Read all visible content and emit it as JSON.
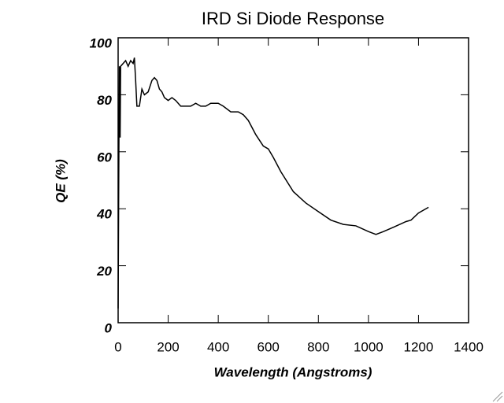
{
  "chart_data": {
    "type": "line",
    "title": "IRD Si Diode Response",
    "x_label": "Wavelength (Angstroms)",
    "y_label": "QE (%)",
    "xlim": [
      0,
      1400
    ],
    "xticks": [
      0,
      200,
      400,
      600,
      800,
      1000,
      1200,
      1400
    ],
    "ylim": [
      0,
      100
    ],
    "yticks": [
      0,
      20,
      40,
      60,
      80,
      100
    ],
    "series": [
      {
        "color": "#000000",
        "x": [
          0,
          3,
          5,
          8,
          10,
          20,
          30,
          40,
          50,
          60,
          65,
          70,
          75,
          85,
          95,
          105,
          120,
          135,
          145,
          155,
          165,
          175,
          185,
          200,
          215,
          230,
          250,
          270,
          290,
          310,
          330,
          350,
          370,
          400,
          420,
          450,
          480,
          500,
          520,
          550,
          580,
          600,
          620,
          650,
          700,
          750,
          800,
          850,
          900,
          950,
          1000,
          1030,
          1060,
          1100,
          1150,
          1170,
          1200,
          1240
        ],
        "values": [
          5,
          60,
          90,
          65,
          90,
          91,
          92,
          90,
          92,
          91,
          93,
          85,
          76,
          76,
          82,
          80,
          81,
          85,
          86,
          85,
          82,
          81,
          79,
          78,
          79,
          78,
          76,
          76,
          76,
          77,
          76,
          76,
          77,
          77,
          76,
          74,
          74,
          73,
          71,
          66,
          62,
          61,
          58,
          53,
          46,
          42,
          39,
          36,
          34.5,
          34,
          32,
          31,
          32,
          33.5,
          35.5,
          36,
          38.5,
          40.5
        ]
      }
    ]
  }
}
